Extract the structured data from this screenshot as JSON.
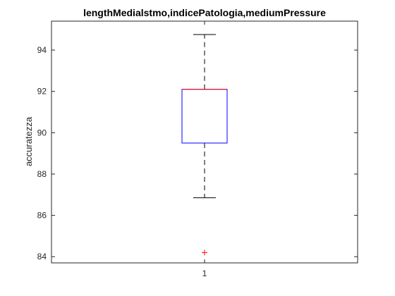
{
  "chart_data": {
    "type": "box",
    "title": "lengthMedialstmo,indicePatologia,mediumPressure",
    "xlabel": "",
    "ylabel": "accuratezza",
    "categories": [
      "1"
    ],
    "ylim": [
      83.7,
      95.4
    ],
    "yticks": [
      84,
      86,
      88,
      90,
      92,
      94
    ],
    "ytick_labels": [
      "84",
      "86",
      "88",
      "90",
      "92",
      "94"
    ],
    "xtick_labels": [
      "1"
    ],
    "boxes": [
      {
        "category": "1",
        "whisker_low": 86.85,
        "q1": 89.5,
        "median": 92.1,
        "q3": 92.1,
        "whisker_high": 94.75,
        "outliers": [
          84.2
        ]
      }
    ],
    "colors": {
      "box": "#0000ff",
      "median": "#ff0000",
      "whisker": "#000000",
      "outlier": "#ff0000",
      "axis": "#262626"
    }
  }
}
